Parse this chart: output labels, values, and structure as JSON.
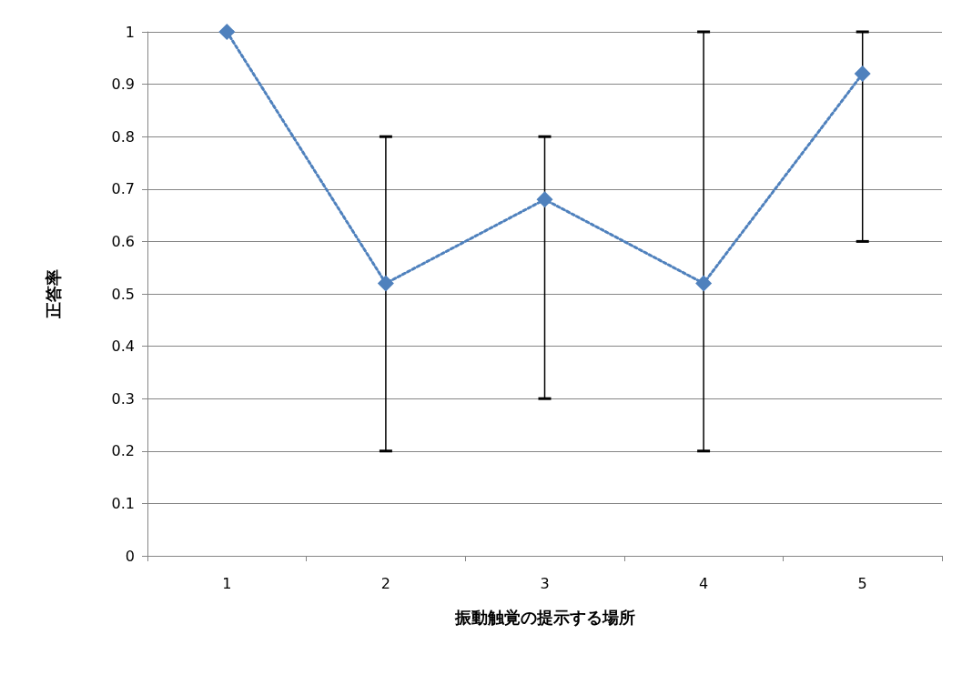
{
  "chart_data": {
    "type": "line",
    "xlabel": "振動触覚の提示する場所",
    "ylabel": "正答率",
    "categories": [
      "1",
      "2",
      "3",
      "4",
      "5"
    ],
    "series": [
      {
        "color": "#4f81bd",
        "values": [
          1,
          0.52,
          0.68,
          0.52,
          0.92
        ],
        "errors": [
          [
            1,
            1
          ],
          [
            0.2,
            0.8
          ],
          [
            0.3,
            0.8
          ],
          [
            0.2,
            1
          ],
          [
            0.6,
            1
          ]
        ]
      }
    ],
    "ylim": [
      0,
      1
    ],
    "yticks": [
      0,
      0.1,
      0.2,
      0.3,
      0.4,
      0.5,
      0.6,
      0.7,
      0.8,
      0.9,
      1
    ],
    "grid": "y",
    "marker": "diamond",
    "line_style": "dotted"
  }
}
